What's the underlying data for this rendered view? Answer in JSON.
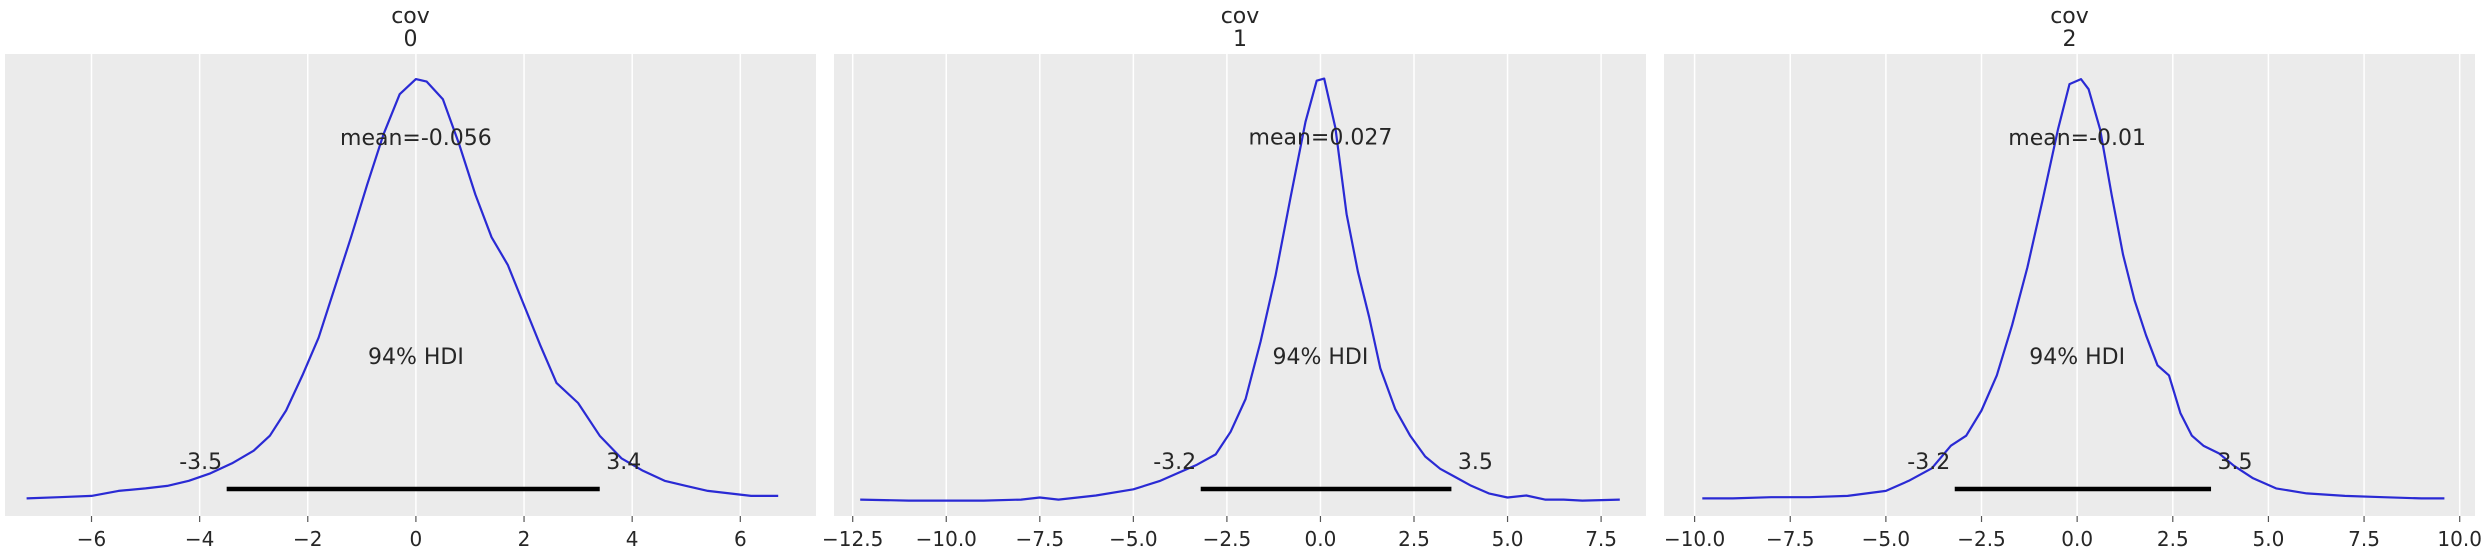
{
  "figure_colors": {
    "background": "#ffffff",
    "plot_background": "#ebebeb",
    "grid": "#ffffff",
    "curve": "#2a2ad4",
    "hdi_bar": "#000000",
    "text": "#262626"
  },
  "chart_data": [
    {
      "type": "line",
      "title_line1": "cov",
      "title_line2": "0",
      "mean_label": "mean=-0.056",
      "hdi_label": "94% HDI",
      "hdi_low": -3.5,
      "hdi_high": 3.4,
      "hdi_low_label": "-3.5",
      "hdi_high_label": "3.4",
      "xlim": [
        -7.6,
        7.4
      ],
      "xticks": [
        -6,
        -4,
        -2,
        0,
        2,
        4,
        6
      ],
      "xtick_labels": [
        "−6",
        "−4",
        "−2",
        "0",
        "2",
        "4",
        "6"
      ],
      "ylim": [
        -0.006,
        0.178
      ],
      "grid": true,
      "x": [
        -7.2,
        -6.6,
        -6.0,
        -5.5,
        -5.0,
        -4.6,
        -4.2,
        -3.8,
        -3.4,
        -3.0,
        -2.7,
        -2.4,
        -2.1,
        -1.8,
        -1.5,
        -1.2,
        -0.9,
        -0.6,
        -0.3,
        0.0,
        0.2,
        0.5,
        0.8,
        1.1,
        1.4,
        1.7,
        2.0,
        2.3,
        2.6,
        3.0,
        3.4,
        3.8,
        4.2,
        4.6,
        5.0,
        5.4,
        5.8,
        6.2,
        6.7
      ],
      "y": [
        0.001,
        0.0015,
        0.002,
        0.004,
        0.005,
        0.006,
        0.008,
        0.011,
        0.015,
        0.02,
        0.026,
        0.036,
        0.05,
        0.065,
        0.085,
        0.105,
        0.126,
        0.146,
        0.162,
        0.168,
        0.167,
        0.16,
        0.142,
        0.122,
        0.105,
        0.094,
        0.078,
        0.062,
        0.047,
        0.039,
        0.026,
        0.017,
        0.012,
        0.008,
        0.006,
        0.004,
        0.003,
        0.002,
        0.002
      ]
    },
    {
      "type": "line",
      "title_line1": "cov",
      "title_line2": "1",
      "mean_label": "mean=0.027",
      "hdi_label": "94% HDI",
      "hdi_low": -3.2,
      "hdi_high": 3.5,
      "hdi_low_label": "-3.2",
      "hdi_high_label": "3.5",
      "xlim": [
        -13.0,
        8.7
      ],
      "xticks": [
        -12.5,
        -10.0,
        -7.5,
        -5.0,
        -2.5,
        0.0,
        2.5,
        5.0,
        7.5
      ],
      "xtick_labels": [
        "−12.5",
        "−10.0",
        "−7.5",
        "−5.0",
        "−2.5",
        "0.0",
        "2.5",
        "5.0",
        "7.5"
      ],
      "ylim": [
        -0.007,
        0.218
      ],
      "grid": true,
      "x": [
        -12.3,
        -11.0,
        -10.0,
        -9.0,
        -8.0,
        -7.5,
        -7.0,
        -6.0,
        -5.0,
        -4.3,
        -3.8,
        -3.3,
        -2.8,
        -2.4,
        -2.0,
        -1.6,
        -1.2,
        -0.8,
        -0.4,
        -0.1,
        0.1,
        0.4,
        0.7,
        1.0,
        1.3,
        1.6,
        2.0,
        2.4,
        2.8,
        3.2,
        3.6,
        4.0,
        4.5,
        5.0,
        5.5,
        6.0,
        6.5,
        7.0,
        8.0
      ],
      "y": [
        0.001,
        0.0005,
        0.0005,
        0.0005,
        0.001,
        0.002,
        0.001,
        0.003,
        0.006,
        0.01,
        0.014,
        0.018,
        0.023,
        0.034,
        0.05,
        0.078,
        0.11,
        0.148,
        0.185,
        0.205,
        0.206,
        0.182,
        0.14,
        0.112,
        0.09,
        0.065,
        0.045,
        0.032,
        0.022,
        0.016,
        0.012,
        0.008,
        0.004,
        0.002,
        0.003,
        0.001,
        0.001,
        0.0005,
        0.001
      ]
    },
    {
      "type": "line",
      "title_line1": "cov",
      "title_line2": "2",
      "mean_label": "mean=-0.01",
      "hdi_label": "94% HDI",
      "hdi_low": -3.2,
      "hdi_high": 3.5,
      "hdi_low_label": "-3.2",
      "hdi_high_label": "3.5",
      "xlim": [
        -10.8,
        10.4
      ],
      "xticks": [
        -10.0,
        -7.5,
        -5.0,
        -2.5,
        0.0,
        2.5,
        5.0,
        7.5,
        10.0
      ],
      "xtick_labels": [
        "−10.0",
        "−7.5",
        "−5.0",
        "−2.5",
        "0.0",
        "2.5",
        "5.0",
        "7.5",
        "10.0"
      ],
      "ylim": [
        -0.006,
        0.178
      ],
      "grid": true,
      "x": [
        -9.8,
        -9.0,
        -8.0,
        -7.0,
        -6.0,
        -5.0,
        -4.4,
        -3.8,
        -3.3,
        -2.9,
        -2.5,
        -2.1,
        -1.7,
        -1.3,
        -0.9,
        -0.5,
        -0.2,
        0.1,
        0.3,
        0.6,
        0.9,
        1.2,
        1.5,
        1.8,
        2.1,
        2.4,
        2.7,
        3.0,
        3.3,
        3.7,
        4.1,
        4.6,
        5.2,
        6.0,
        7.0,
        8.0,
        9.0,
        9.6
      ],
      "y": [
        0.001,
        0.001,
        0.0015,
        0.0015,
        0.002,
        0.004,
        0.008,
        0.013,
        0.022,
        0.026,
        0.036,
        0.05,
        0.07,
        0.093,
        0.12,
        0.148,
        0.166,
        0.168,
        0.164,
        0.148,
        0.122,
        0.098,
        0.08,
        0.066,
        0.054,
        0.05,
        0.035,
        0.026,
        0.022,
        0.019,
        0.014,
        0.009,
        0.005,
        0.003,
        0.002,
        0.0015,
        0.001,
        0.001
      ]
    }
  ]
}
